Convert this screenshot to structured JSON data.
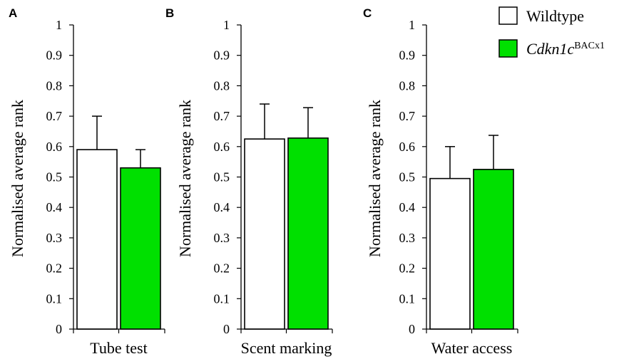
{
  "legend": {
    "items": [
      {
        "label": "Wildtype",
        "italic_part": "",
        "sup": "",
        "color": "#ffffff"
      },
      {
        "label": "",
        "italic_part": "Cdkn1c",
        "sup": "BACx1",
        "color": "#00e000"
      }
    ]
  },
  "chart_data": [
    {
      "type": "bar",
      "panel": "A",
      "title": "",
      "ylabel": "Normalised average rank",
      "xlabel": "Tube test",
      "ylim": [
        0,
        1
      ],
      "yticks": [
        "0",
        "0.1",
        "0.2",
        "0.3",
        "0.4",
        "0.5",
        "0.6",
        "0.7",
        "0.8",
        "0.9",
        "1"
      ],
      "series": [
        {
          "values": [
            0.59
          ],
          "errors": [
            0.11
          ],
          "color": "#ffffff"
        },
        {
          "values": [
            0.53
          ],
          "errors": [
            0.06
          ],
          "color": "#00e000"
        }
      ]
    },
    {
      "type": "bar",
      "panel": "B",
      "title": "",
      "ylabel": "Normalised average rank",
      "xlabel": "Scent marking",
      "ylim": [
        0,
        1
      ],
      "yticks": [
        "0",
        "0.1",
        "0.2",
        "0.3",
        "0.4",
        "0.5",
        "0.6",
        "0.7",
        "0.8",
        "0.9",
        "1"
      ],
      "series": [
        {
          "values": [
            0.625
          ],
          "errors": [
            0.115
          ],
          "color": "#ffffff"
        },
        {
          "values": [
            0.628
          ],
          "errors": [
            0.1
          ],
          "color": "#00e000"
        }
      ]
    },
    {
      "type": "bar",
      "panel": "C",
      "title": "",
      "ylabel": "Normalised average rank",
      "xlabel": "Water access",
      "ylim": [
        0,
        1
      ],
      "yticks": [
        "0",
        "0.1",
        "0.2",
        "0.3",
        "0.4",
        "0.5",
        "0.6",
        "0.7",
        "0.8",
        "0.9",
        "1"
      ],
      "series": [
        {
          "values": [
            0.495
          ],
          "errors": [
            0.105
          ],
          "color": "#ffffff"
        },
        {
          "values": [
            0.525
          ],
          "errors": [
            0.112
          ],
          "color": "#00e000"
        }
      ]
    }
  ]
}
